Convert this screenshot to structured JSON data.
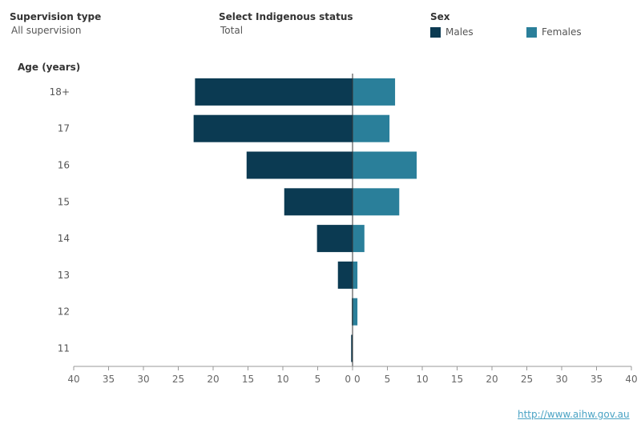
{
  "filters": {
    "supervision": {
      "title": "Supervision type",
      "value": "All supervision"
    },
    "indigenous": {
      "title": "Select Indigenous status",
      "value": "Total"
    }
  },
  "legend": {
    "title": "Sex",
    "items": [
      {
        "label": "Males",
        "color": "#0b3a52"
      },
      {
        "label": "Females",
        "color": "#2a7f9a"
      }
    ]
  },
  "chart_data": {
    "type": "bar",
    "orientation": "horizontal-butterfly",
    "y_axis_label": "Age (years)",
    "categories": [
      "18+",
      "17",
      "16",
      "15",
      "14",
      "13",
      "12",
      "11"
    ],
    "series": [
      {
        "name": "Males",
        "color": "#0b3a52",
        "values": [
          22.6,
          22.8,
          15.2,
          9.8,
          5.1,
          2.1,
          0.1,
          0.2
        ]
      },
      {
        "name": "Females",
        "color": "#2a7f9a",
        "values": [
          6.1,
          5.3,
          9.2,
          6.7,
          1.7,
          0.7,
          0.7,
          0.0
        ]
      }
    ],
    "x_ticks": [
      "40",
      "35",
      "30",
      "25",
      "20",
      "15",
      "10",
      "5",
      "0",
      "0",
      "5",
      "10",
      "15",
      "20",
      "25",
      "30",
      "35",
      "40"
    ],
    "xlim": [
      -40,
      40
    ]
  },
  "footer": {
    "link": "http://www.aihw.gov.au"
  }
}
